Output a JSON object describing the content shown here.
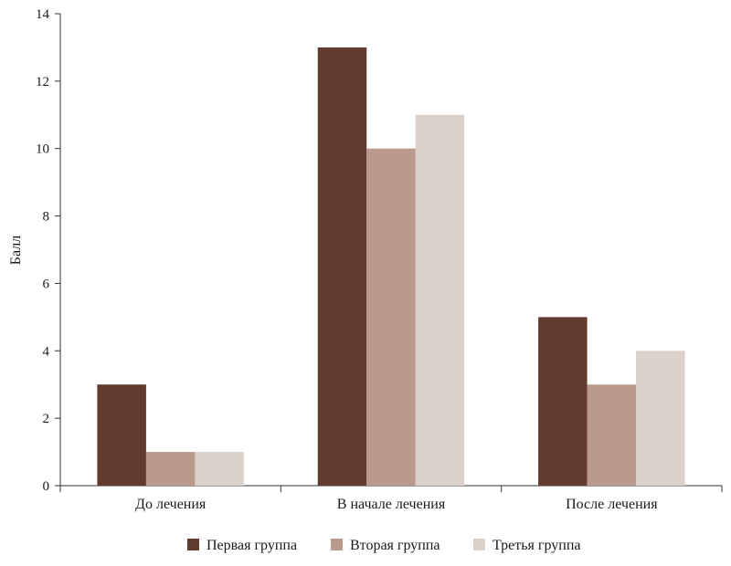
{
  "chart_data": {
    "type": "bar",
    "ylabel": "Балл",
    "xlabel": "",
    "ylim": [
      0,
      14
    ],
    "yticks": [
      0,
      2,
      4,
      6,
      8,
      10,
      12,
      14
    ],
    "categories": [
      "До лечения",
      "В начале лечения",
      "После лечения"
    ],
    "series": [
      {
        "name": "Первая группа",
        "color": "#633a2e",
        "values": [
          3,
          13,
          5
        ]
      },
      {
        "name": "Вторая группа",
        "color": "#bb9a8e",
        "values": [
          1,
          10,
          3
        ]
      },
      {
        "name": "Третья группа",
        "color": "#dcd0cb",
        "values": [
          1,
          11,
          4
        ]
      }
    ],
    "legend_position": "bottom",
    "grid": false
  }
}
